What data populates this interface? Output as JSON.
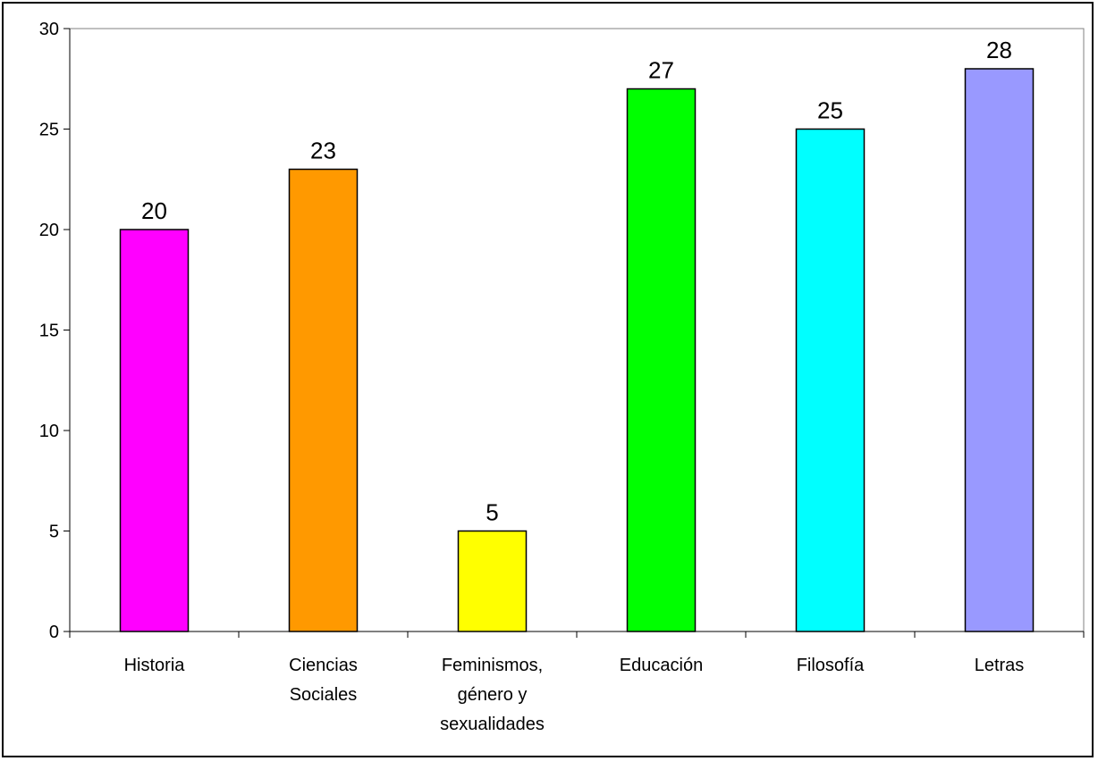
{
  "chart_data": {
    "type": "bar",
    "categories": [
      [
        "Historia"
      ],
      [
        "Ciencias",
        "Sociales"
      ],
      [
        "Feminismos,",
        "género y",
        "sexualidades"
      ],
      [
        "Educación"
      ],
      [
        "Filosofía"
      ],
      [
        "Letras"
      ]
    ],
    "values": [
      20,
      23,
      5,
      27,
      25,
      28
    ],
    "colors": [
      "#ff00ff",
      "#ff9900",
      "#ffff00",
      "#00ff00",
      "#00ffff",
      "#9999ff"
    ],
    "ylim": [
      0,
      30
    ],
    "yticks": [
      "0",
      "5",
      "10",
      "15",
      "20",
      "25",
      "30"
    ],
    "ytick_values": [
      0,
      5,
      10,
      15,
      20,
      25,
      30
    ],
    "data_labels": [
      "20",
      "23",
      "5",
      "27",
      "25",
      "28"
    ],
    "title": "",
    "xlabel": "",
    "ylabel": "",
    "grid": false,
    "legend": "none"
  }
}
